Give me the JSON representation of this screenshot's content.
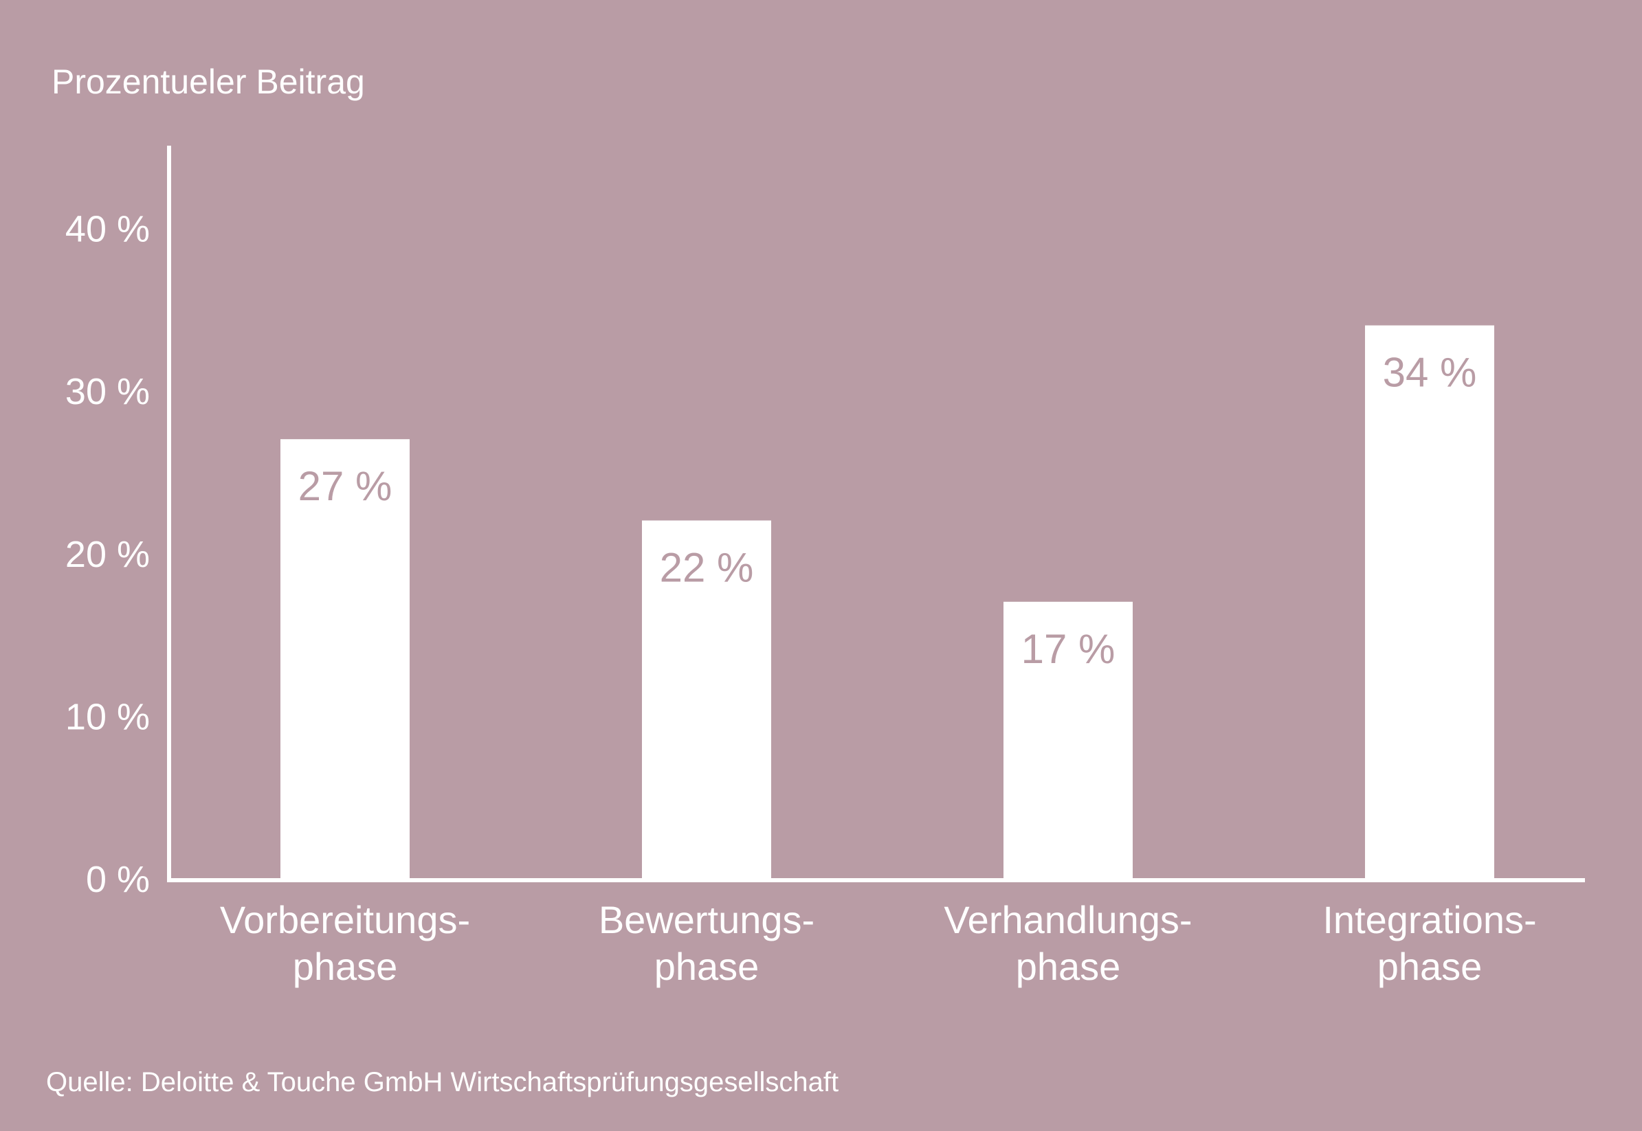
{
  "chart_data": {
    "type": "bar",
    "ylabel": "Prozentueler Beitrag",
    "categories": [
      [
        "Vorbereitungs-",
        "phase"
      ],
      [
        "Bewertungs-",
        "phase"
      ],
      [
        "Verhandlungs-",
        "phase"
      ],
      [
        "Integrations-",
        "phase"
      ]
    ],
    "values": [
      27,
      22,
      17,
      34
    ],
    "data_labels": [
      "27 %",
      "22 %",
      "17 %",
      "34 %"
    ],
    "yticks": [
      0,
      10,
      20,
      30,
      40
    ],
    "ytick_labels": [
      "0 %",
      "10 %",
      "20 %",
      "30 %",
      "40 %"
    ],
    "ylim": [
      0,
      45
    ],
    "grid": false,
    "source": "Quelle: Deloitte & Touche GmbH Wirtschaftsprüfungsgesellschaft"
  },
  "colors": {
    "background": "#b99ca5",
    "bars": "#ffffff",
    "axis": "#ffffff",
    "text": "#ffffff",
    "data_label": "#b99ca5"
  }
}
